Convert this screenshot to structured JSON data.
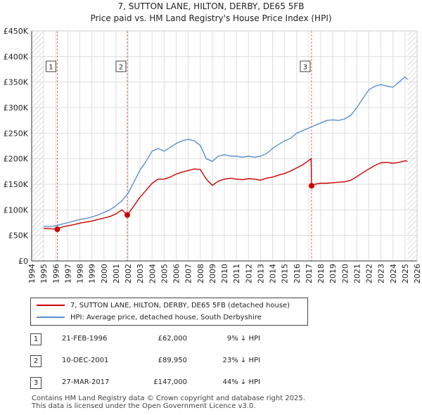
{
  "header": {
    "title": "7, SUTTON LANE, HILTON, DERBY, DE65 5FB",
    "subtitle": "Price paid vs. HM Land Registry's House Price Index (HPI)"
  },
  "chart_data": {
    "type": "line",
    "title": "7, SUTTON LANE, HILTON, DERBY, DE65 5FB",
    "xlabel": "",
    "ylabel": "",
    "xlim": [
      1994,
      2026
    ],
    "ylim": [
      0,
      450000
    ],
    "y_ticks": [
      0,
      50000,
      100000,
      150000,
      200000,
      250000,
      300000,
      350000,
      400000,
      450000
    ],
    "y_tick_labels": [
      "£0",
      "£50K",
      "£100K",
      "£150K",
      "£200K",
      "£250K",
      "£300K",
      "£350K",
      "£400K",
      "£450K"
    ],
    "x_ticks": [
      1994,
      1995,
      1996,
      1997,
      1998,
      1999,
      2000,
      2001,
      2002,
      2003,
      2004,
      2005,
      2006,
      2007,
      2008,
      2009,
      2010,
      2011,
      2012,
      2013,
      2014,
      2015,
      2016,
      2017,
      2018,
      2019,
      2020,
      2021,
      2022,
      2023,
      2024,
      2025,
      2026
    ],
    "x_tick_labels": [
      "1994",
      "1995",
      "1996",
      "1997",
      "1998",
      "1999",
      "2000",
      "2001",
      "2002",
      "2003",
      "2004",
      "2005",
      "2006",
      "2007",
      "2008",
      "2009",
      "2010",
      "2011",
      "2012",
      "2013",
      "2014",
      "2015",
      "2016",
      "2017",
      "2018",
      "2019",
      "2020",
      "2021",
      "2022",
      "2023",
      "2024",
      "2025",
      "2026"
    ],
    "data_range": [
      1995.0,
      2025.2
    ],
    "series": [
      {
        "name": "7, SUTTON LANE, HILTON, DERBY, DE65 5FB (detached house)",
        "color": "#cc0000",
        "x": [
          1995.0,
          1995.5,
          1996.13,
          1996.5,
          1997.0,
          1997.5,
          1998.0,
          1998.5,
          1999.0,
          1999.5,
          2000.0,
          2000.5,
          2001.0,
          2001.5,
          2001.94,
          2002.5,
          2003.0,
          2003.5,
          2004.0,
          2004.5,
          2005.0,
          2005.5,
          2006.0,
          2006.5,
          2007.0,
          2007.5,
          2008.0,
          2008.5,
          2009.0,
          2009.5,
          2010.0,
          2010.5,
          2011.0,
          2011.5,
          2012.0,
          2012.5,
          2013.0,
          2013.5,
          2014.0,
          2014.5,
          2015.0,
          2015.5,
          2016.0,
          2016.5,
          2017.2,
          2017.24,
          2017.5,
          2018.0,
          2018.5,
          2019.0,
          2019.5,
          2020.0,
          2020.5,
          2021.0,
          2021.5,
          2022.0,
          2022.5,
          2023.0,
          2023.5,
          2024.0,
          2024.5,
          2025.0,
          2025.2
        ],
        "values": [
          64000,
          63000,
          62000,
          66000,
          69000,
          71000,
          74000,
          76000,
          78000,
          81000,
          84000,
          87000,
          92000,
          100000,
          89950,
          108000,
          125000,
          138000,
          152000,
          160000,
          160000,
          164000,
          170000,
          174000,
          177000,
          180000,
          179000,
          160000,
          148000,
          156000,
          160000,
          162000,
          160000,
          159000,
          161000,
          160000,
          158000,
          162000,
          164000,
          168000,
          171000,
          176000,
          182000,
          188000,
          200000,
          147000,
          150000,
          152000,
          152000,
          153000,
          154000,
          155000,
          158000,
          165000,
          173000,
          180000,
          187000,
          192000,
          193000,
          191000,
          193000,
          196000,
          195000
        ]
      },
      {
        "name": "HPI: Average price, detached house, South Derbyshire",
        "color": "#5b8fd0",
        "x": [
          1995.0,
          1995.5,
          1996.0,
          1996.5,
          1997.0,
          1997.5,
          1998.0,
          1998.5,
          1999.0,
          1999.5,
          2000.0,
          2000.5,
          2001.0,
          2001.5,
          2002.0,
          2002.5,
          2003.0,
          2003.5,
          2004.0,
          2004.5,
          2005.0,
          2005.5,
          2006.0,
          2006.5,
          2007.0,
          2007.5,
          2008.0,
          2008.5,
          2009.0,
          2009.5,
          2010.0,
          2010.5,
          2011.0,
          2011.5,
          2012.0,
          2012.5,
          2013.0,
          2013.5,
          2014.0,
          2014.5,
          2015.0,
          2015.5,
          2016.0,
          2016.5,
          2017.0,
          2017.5,
          2018.0,
          2018.5,
          2019.0,
          2019.5,
          2020.0,
          2020.5,
          2021.0,
          2021.5,
          2022.0,
          2022.5,
          2023.0,
          2023.5,
          2024.0,
          2024.5,
          2025.0,
          2025.2
        ],
        "values": [
          68000,
          67000,
          69000,
          72000,
          75000,
          78000,
          81000,
          83000,
          86000,
          90000,
          95000,
          100000,
          108000,
          118000,
          132000,
          155000,
          178000,
          195000,
          215000,
          220000,
          215000,
          222000,
          230000,
          235000,
          238000,
          235000,
          226000,
          200000,
          195000,
          205000,
          208000,
          205000,
          205000,
          203000,
          205000,
          203000,
          205000,
          210000,
          220000,
          228000,
          235000,
          240000,
          250000,
          255000,
          260000,
          265000,
          270000,
          275000,
          276000,
          275000,
          278000,
          285000,
          300000,
          318000,
          335000,
          342000,
          345000,
          342000,
          340000,
          350000,
          360000,
          355000
        ]
      }
    ],
    "markers": [
      {
        "label": "1",
        "x": 1996.13,
        "value": 62000
      },
      {
        "label": "2",
        "x": 2001.94,
        "value": 89950
      },
      {
        "label": "3",
        "x": 2017.24,
        "value": 147000
      }
    ],
    "marker_label_value": 380000,
    "colors": {
      "price": "#cc0000",
      "hpi": "#5b8fd0",
      "hatch": "#bbbbbb",
      "grid": "#dddddd",
      "vline": "#dd6666"
    }
  },
  "legend": {
    "items": [
      {
        "label": "7, SUTTON LANE, HILTON, DERBY, DE65 5FB (detached house)",
        "color": "#cc0000"
      },
      {
        "label": "HPI: Average price, detached house, South Derbyshire",
        "color": "#5b8fd0"
      }
    ]
  },
  "transactions": [
    {
      "num": "1",
      "date": "21-FEB-1996",
      "price": "£62,000",
      "hpi": "9% ↓ HPI"
    },
    {
      "num": "2",
      "date": "10-DEC-2001",
      "price": "£89,950",
      "hpi": "23% ↓ HPI"
    },
    {
      "num": "3",
      "date": "27-MAR-2017",
      "price": "£147,000",
      "hpi": "44% ↓ HPI"
    }
  ],
  "footer": {
    "line1": "Contains HM Land Registry data © Crown copyright and database right 2025.",
    "line2": "This data is licensed under the Open Government Licence v3.0."
  }
}
